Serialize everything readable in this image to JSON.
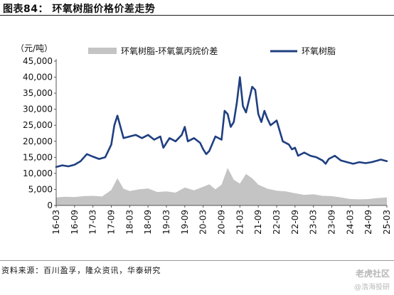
{
  "figure_title": "图表84： 环氧树脂价格价差走势",
  "source": "资料来源：百川盈孚，隆众资讯，华泰研究",
  "watermark": {
    "main": "老虎社区",
    "sub": "@浩海投研"
  },
  "colors": {
    "line": "#1f3f80",
    "area": "#c4c4c4"
  },
  "chart_data": {
    "type": "line",
    "unit_label": "（元/吨）",
    "xlabel": "",
    "ylabel": "",
    "ylim": [
      0,
      45000
    ],
    "yticks": [
      0,
      5000,
      10000,
      15000,
      20000,
      25000,
      30000,
      35000,
      40000,
      45000
    ],
    "ytick_labels": [
      "0",
      "5,000",
      "10,000",
      "15,000",
      "20,000",
      "25,000",
      "30,000",
      "35,000",
      "40,000",
      "45,000"
    ],
    "xticks": [
      "16-03",
      "16-09",
      "17-03",
      "17-09",
      "18-03",
      "18-09",
      "19-03",
      "19-09",
      "20-03",
      "20-09",
      "21-03",
      "21-09",
      "22-03",
      "22-09",
      "23-03",
      "23-09",
      "24-03",
      "24-09",
      "25-03"
    ],
    "x_range": [
      "2016-03",
      "2025-03"
    ],
    "legend_position": "top",
    "grid": false,
    "series": [
      {
        "name": "环氧树脂-环氧氯丙烷价差",
        "type": "area",
        "points": [
          [
            "2016-03",
            2500
          ],
          [
            "2016-06",
            2700
          ],
          [
            "2016-09",
            2600
          ],
          [
            "2016-12",
            2900
          ],
          [
            "2017-03",
            3000
          ],
          [
            "2017-06",
            2800
          ],
          [
            "2017-09",
            4800
          ],
          [
            "2017-11",
            8500
          ],
          [
            "2018-01",
            5200
          ],
          [
            "2018-03",
            4500
          ],
          [
            "2018-06",
            5000
          ],
          [
            "2018-09",
            5300
          ],
          [
            "2018-12",
            4200
          ],
          [
            "2019-03",
            4400
          ],
          [
            "2019-06",
            4000
          ],
          [
            "2019-09",
            5600
          ],
          [
            "2019-12",
            4700
          ],
          [
            "2020-03",
            5800
          ],
          [
            "2020-05",
            6600
          ],
          [
            "2020-07",
            5000
          ],
          [
            "2020-09",
            6500
          ],
          [
            "2020-11",
            11700
          ],
          [
            "2021-01",
            8000
          ],
          [
            "2021-03",
            6800
          ],
          [
            "2021-05",
            9800
          ],
          [
            "2021-07",
            8500
          ],
          [
            "2021-09",
            6500
          ],
          [
            "2021-12",
            5200
          ],
          [
            "2022-03",
            4600
          ],
          [
            "2022-06",
            4400
          ],
          [
            "2022-09",
            3800
          ],
          [
            "2022-12",
            3300
          ],
          [
            "2023-03",
            3500
          ],
          [
            "2023-06",
            3000
          ],
          [
            "2023-09",
            2900
          ],
          [
            "2023-12",
            2500
          ],
          [
            "2024-03",
            2000
          ],
          [
            "2024-06",
            1900
          ],
          [
            "2024-09",
            2000
          ],
          [
            "2024-12",
            2300
          ],
          [
            "2025-03",
            2500
          ]
        ]
      },
      {
        "name": "环氧树脂",
        "type": "line",
        "points": [
          [
            "2016-03",
            12000
          ],
          [
            "2016-05",
            12500
          ],
          [
            "2016-07",
            12200
          ],
          [
            "2016-09",
            12700
          ],
          [
            "2016-11",
            13800
          ],
          [
            "2017-01",
            16000
          ],
          [
            "2017-03",
            15200
          ],
          [
            "2017-05",
            14500
          ],
          [
            "2017-07",
            15000
          ],
          [
            "2017-09",
            19000
          ],
          [
            "2017-10",
            25000
          ],
          [
            "2017-11",
            28000
          ],
          [
            "2017-12",
            24500
          ],
          [
            "2018-01",
            21000
          ],
          [
            "2018-03",
            21500
          ],
          [
            "2018-05",
            22000
          ],
          [
            "2018-07",
            21000
          ],
          [
            "2018-09",
            22000
          ],
          [
            "2018-11",
            20500
          ],
          [
            "2019-01",
            21500
          ],
          [
            "2019-02",
            18000
          ],
          [
            "2019-04",
            21000
          ],
          [
            "2019-06",
            20000
          ],
          [
            "2019-08",
            22000
          ],
          [
            "2019-09",
            24500
          ],
          [
            "2019-10",
            20000
          ],
          [
            "2019-12",
            21000
          ],
          [
            "2020-02",
            19500
          ],
          [
            "2020-03",
            17500
          ],
          [
            "2020-04",
            16000
          ],
          [
            "2020-05",
            17000
          ],
          [
            "2020-07",
            21500
          ],
          [
            "2020-09",
            20500
          ],
          [
            "2020-10",
            29500
          ],
          [
            "2020-11",
            28500
          ],
          [
            "2020-12",
            24500
          ],
          [
            "2021-01",
            26000
          ],
          [
            "2021-02",
            32000
          ],
          [
            "2021-03",
            40000
          ],
          [
            "2021-04",
            31000
          ],
          [
            "2021-05",
            29000
          ],
          [
            "2021-06",
            33000
          ],
          [
            "2021-07",
            37000
          ],
          [
            "2021-08",
            36000
          ],
          [
            "2021-09",
            28500
          ],
          [
            "2021-10",
            26000
          ],
          [
            "2021-11",
            29500
          ],
          [
            "2021-12",
            27000
          ],
          [
            "2022-01",
            25000
          ],
          [
            "2022-03",
            26500
          ],
          [
            "2022-05",
            20000
          ],
          [
            "2022-07",
            19000
          ],
          [
            "2022-08",
            17500
          ],
          [
            "2022-09",
            18000
          ],
          [
            "2022-10",
            15500
          ],
          [
            "2022-12",
            16500
          ],
          [
            "2023-02",
            15500
          ],
          [
            "2023-04",
            15000
          ],
          [
            "2023-06",
            14000
          ],
          [
            "2023-07",
            13000
          ],
          [
            "2023-08",
            14500
          ],
          [
            "2023-10",
            15500
          ],
          [
            "2023-12",
            14000
          ],
          [
            "2024-02",
            13500
          ],
          [
            "2024-04",
            13000
          ],
          [
            "2024-06",
            13500
          ],
          [
            "2024-08",
            13200
          ],
          [
            "2024-10",
            13500
          ],
          [
            "2024-12",
            14000
          ],
          [
            "2025-01",
            14300
          ],
          [
            "2025-03",
            13800
          ]
        ]
      }
    ]
  }
}
